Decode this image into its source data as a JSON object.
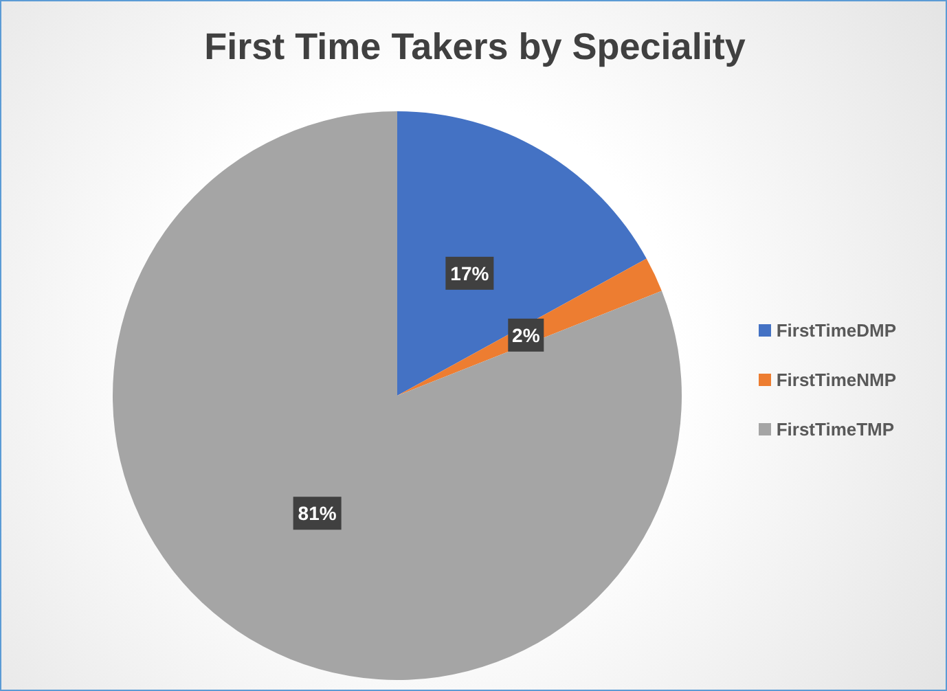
{
  "chart_data": {
    "type": "pie",
    "title": "First Time Takers by Speciality",
    "categories": [
      "FirstTimeDMP",
      "FirstTimeNMP",
      "FirstTimeTMP"
    ],
    "values": [
      17,
      2,
      81
    ],
    "colors": [
      "#4472c4",
      "#ed7d31",
      "#a5a5a5"
    ],
    "value_labels": [
      "17%",
      "2%",
      "81%"
    ],
    "legend": "right"
  }
}
